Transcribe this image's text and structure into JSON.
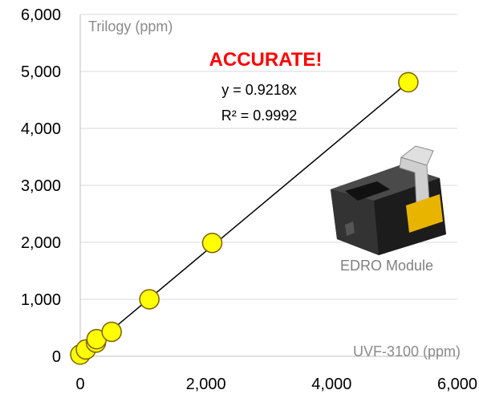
{
  "chart_data": {
    "type": "scatter",
    "title": "",
    "xlabel": "UVF-3100 (ppm)",
    "ylabel": "Trilogy (ppm)",
    "xlim": [
      0,
      6000
    ],
    "ylim": [
      0,
      6000
    ],
    "x_ticks": [
      "0",
      "2,000",
      "4,000",
      "6,000"
    ],
    "y_ticks": [
      "0",
      "1,000",
      "2,000",
      "3,000",
      "4,000",
      "5,000",
      "6,000"
    ],
    "grid": "horizontal",
    "series": [
      {
        "points": [
          {
            "x": 0,
            "y": 30
          },
          {
            "x": 90,
            "y": 120
          },
          {
            "x": 250,
            "y": 240
          },
          {
            "x": 260,
            "y": 300
          },
          {
            "x": 500,
            "y": 430
          },
          {
            "x": 1100,
            "y": 1000
          },
          {
            "x": 2100,
            "y": 1990
          },
          {
            "x": 5220,
            "y": 4810
          }
        ],
        "marker_color": "#ffff00",
        "marker_edge": "#7f6000"
      }
    ],
    "trendline": {
      "slope": 0.9218,
      "x_range": [
        0,
        5220
      ],
      "color": "#000000"
    },
    "annotations": {
      "headline": "ACCURATE!",
      "equation": "y = 0.9218x",
      "r_squared": "R² = 0.9992",
      "module_label": "EDRO Module"
    }
  },
  "colors": {
    "headline": "#ff0000",
    "gridline": "#d9d9d9",
    "axis": "#bfbfbf"
  },
  "module_image_icon": "edro-module-photo"
}
